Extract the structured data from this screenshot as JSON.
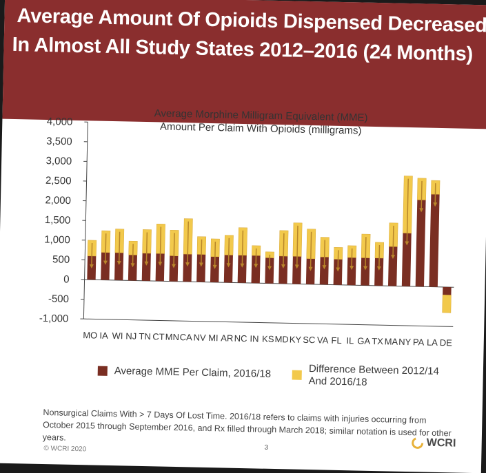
{
  "slide": {
    "title_line_1": "Average Amount Of Opioids Dispensed Decreased",
    "title_line_2": "In Almost All Study States 2012–2016 (24 Months)",
    "footnote": "Nonsurgical Claims With > 7 Days Of Lost Time. 2016/18 refers to claims with injuries occurring from October 2015 through September 2016, and Rx filled through March 2018; similar notation is used for other years.",
    "copyright": "© WCRI 2020",
    "page_number": "3",
    "logo_text": "WCRI"
  },
  "colors": {
    "title_band": "#8a2e2e",
    "mme_bar": "#7a2e22",
    "difference_bar": "#f2c94c",
    "arrow": "#b8862a"
  },
  "chart_data": {
    "type": "bar",
    "stacked": true,
    "title": "Average Morphine Milligram Equivalent (MME)",
    "subtitle": "Amount Per Claim With Opioids (milligrams)",
    "categories": [
      "MO",
      "IA",
      "WI",
      "NJ",
      "TN",
      "CT",
      "MN",
      "CA",
      "NV",
      "MI",
      "AR",
      "NC",
      "IN",
      "KS",
      "MD",
      "KY",
      "SC",
      "VA",
      "FL",
      "IL",
      "GA",
      "TX",
      "MA",
      "NY",
      "PA",
      "LA",
      "DE"
    ],
    "series": [
      {
        "name": "Average MME Per Claim, 2016/18",
        "color": "#7a2e22",
        "values": [
          600,
          700,
          700,
          650,
          700,
          700,
          650,
          700,
          700,
          650,
          700,
          700,
          700,
          650,
          700,
          700,
          650,
          700,
          650,
          700,
          700,
          700,
          1000,
          1350,
          2200,
          2350,
          -200
        ]
      },
      {
        "name": "Difference Between 2012/14 And 2016/18",
        "color": "#f2c94c",
        "values": [
          400,
          550,
          600,
          350,
          600,
          750,
          650,
          900,
          450,
          450,
          500,
          700,
          250,
          150,
          650,
          850,
          750,
          500,
          300,
          300,
          600,
          400,
          600,
          1450,
          550,
          350,
          -450
        ]
      }
    ],
    "yticks": [
      "4,000",
      "3,500",
      "3,000",
      "2,500",
      "2,000",
      "1,500",
      "1,000",
      "500",
      "0",
      "-500",
      "-1,000"
    ],
    "ylim": [
      -1000,
      4000
    ],
    "grid": false,
    "legend_position": "bottom"
  }
}
